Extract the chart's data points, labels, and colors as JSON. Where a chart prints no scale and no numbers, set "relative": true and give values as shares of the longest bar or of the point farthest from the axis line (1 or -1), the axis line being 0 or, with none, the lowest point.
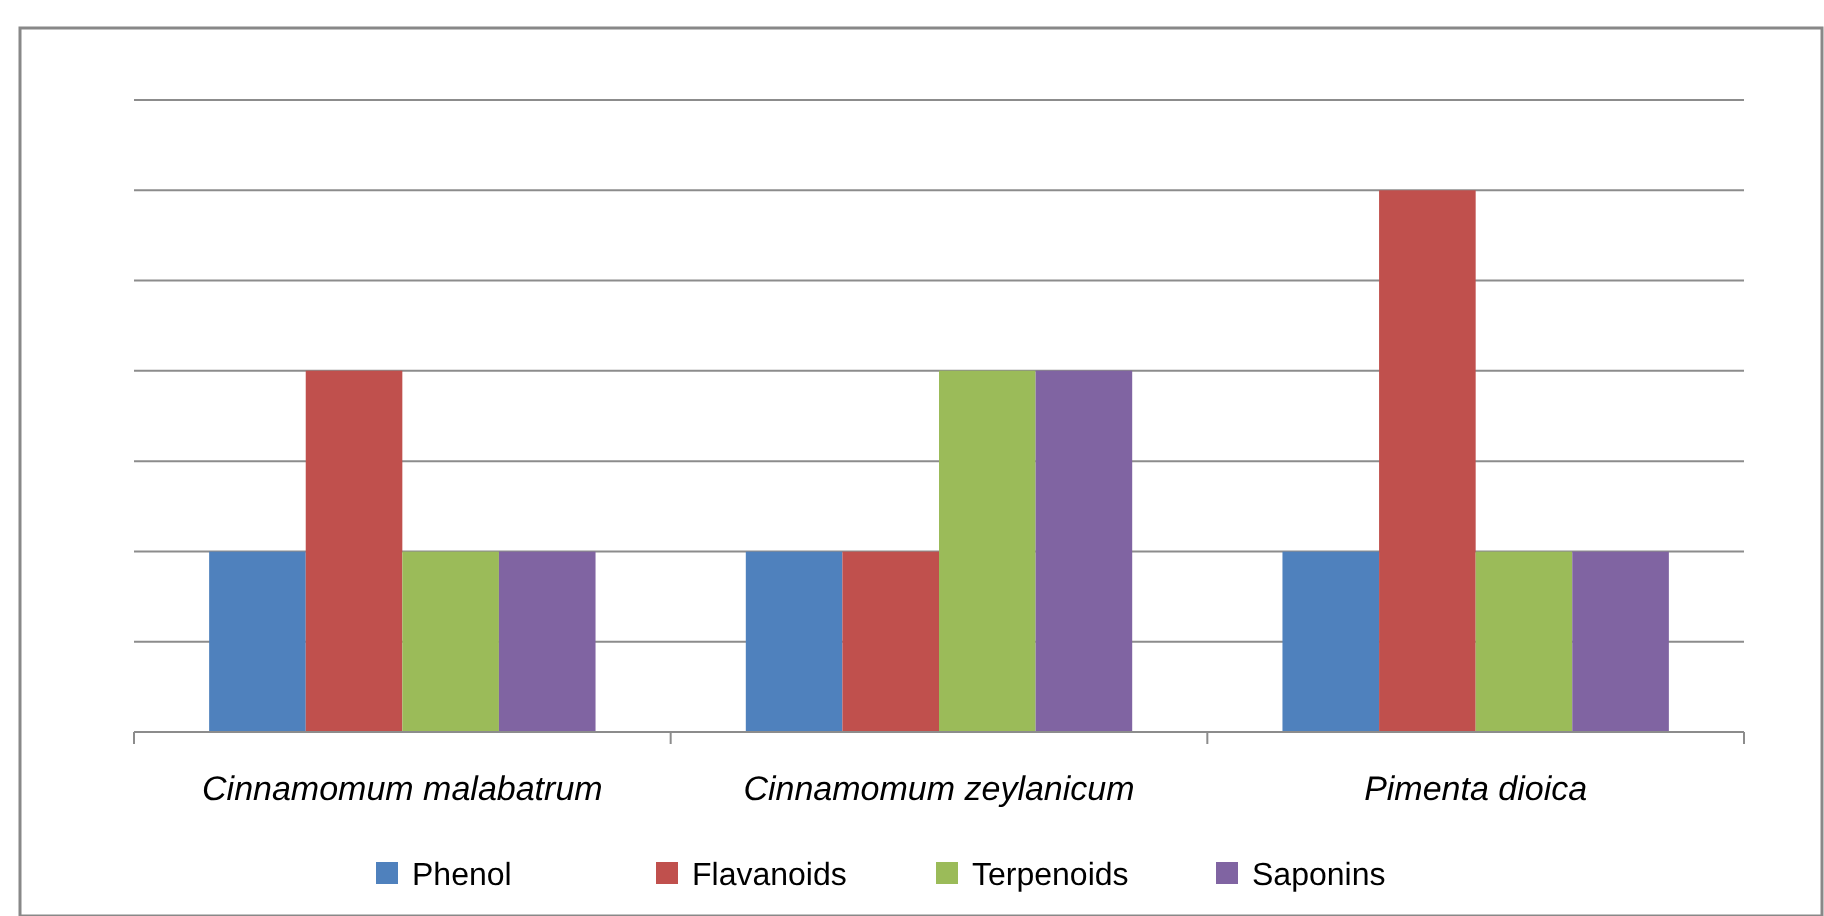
{
  "chart_data": {
    "type": "bar",
    "relative": true,
    "categories": [
      "Cinnamomum malabatrum",
      "Cinnamomum zeylanicum",
      "Pimenta dioica"
    ],
    "series": [
      {
        "name": "Phenol",
        "color": "#4f81bd",
        "values": [
          0.333,
          0.333,
          0.333
        ]
      },
      {
        "name": "Flavanoids",
        "color": "#c0504d",
        "values": [
          0.667,
          0.333,
          1
        ]
      },
      {
        "name": "Terpenoids",
        "color": "#9bbb59",
        "values": [
          0.333,
          0.667,
          0.333
        ]
      },
      {
        "name": "Saponins",
        "color": "#8064a2",
        "values": [
          0.333,
          0.667,
          0.333
        ]
      }
    ],
    "grid": "y",
    "legend": "bottom"
  }
}
